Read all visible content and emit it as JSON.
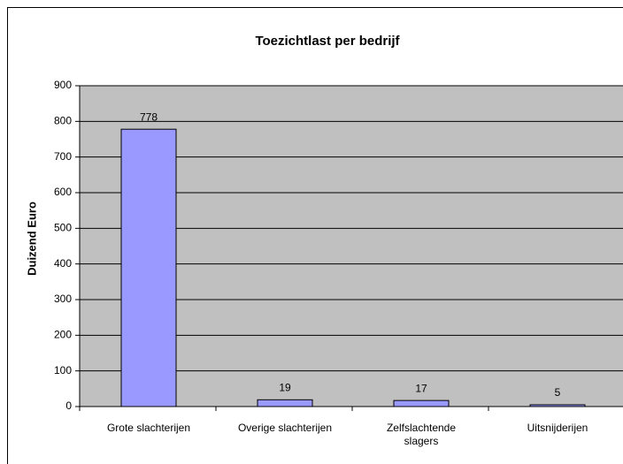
{
  "chart_data": {
    "type": "bar",
    "title": "Toezichtlast per bedrijf",
    "y_label": "Duizend Euro",
    "categories": [
      "Grote slachterijen",
      "Overige slachterijen",
      "Zelfslachtende slagers",
      "Uitsnijderijen"
    ],
    "values": [
      778,
      19,
      17,
      5
    ],
    "color": "#9999ff",
    "ylim": [
      0,
      900
    ],
    "yticks": [
      0,
      100,
      200,
      300,
      400,
      500,
      600,
      700,
      800,
      900
    ],
    "grid": true
  }
}
